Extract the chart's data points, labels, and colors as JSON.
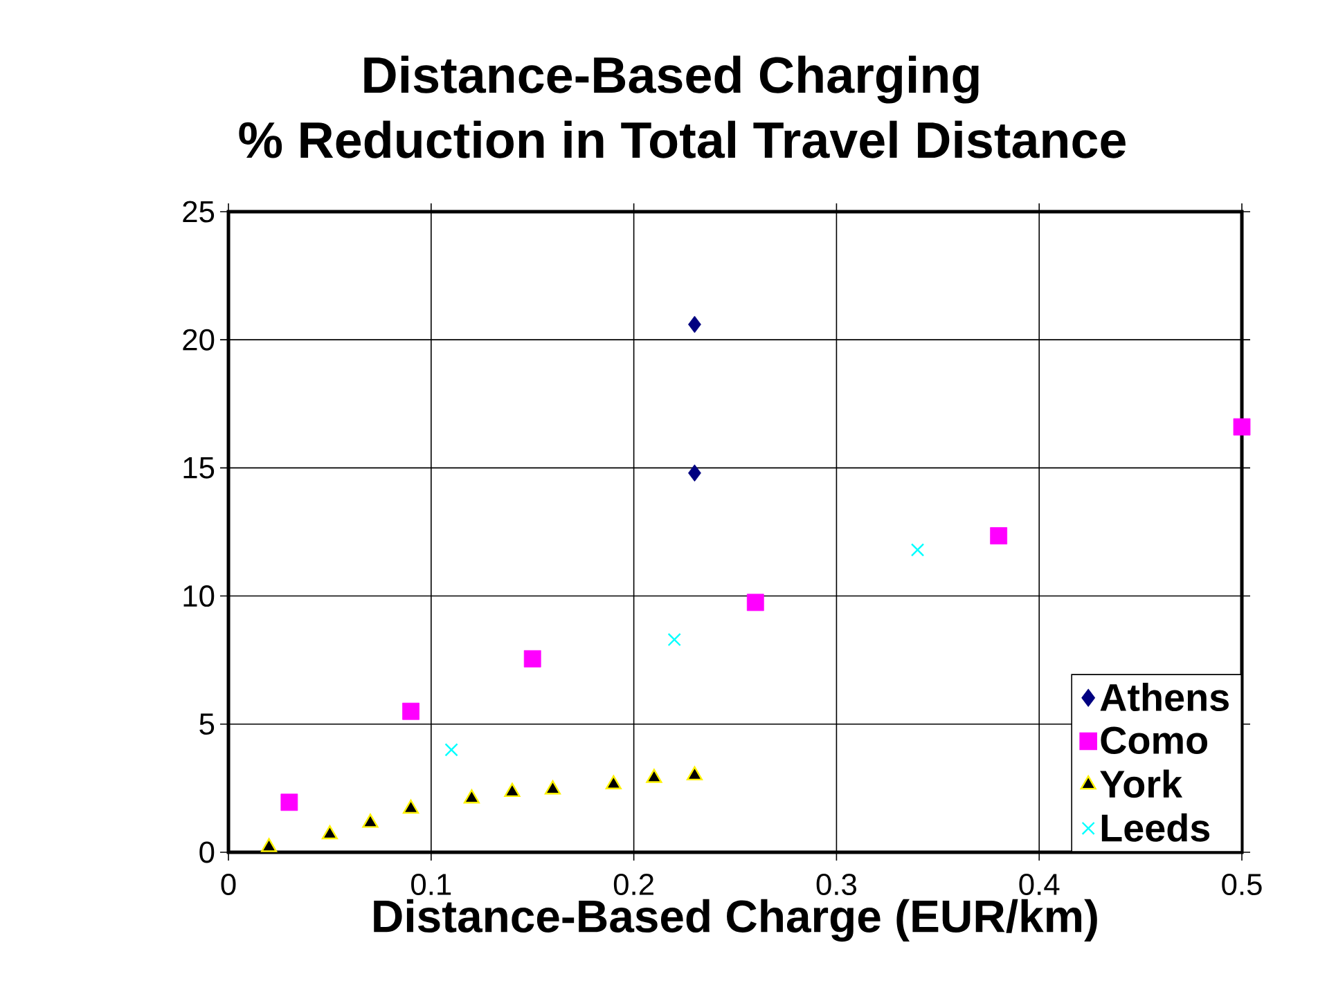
{
  "chart_data": {
    "type": "scatter",
    "title": "Distance-Based Charging",
    "subtitle": "% Reduction in Total Travel Distance",
    "xlabel": "Distance-Based Charge (EUR/km)",
    "xlim": [
      0,
      0.5
    ],
    "xticks": [
      0,
      0.1,
      0.2,
      0.3,
      0.4,
      0.5
    ],
    "ylim": [
      0,
      25
    ],
    "yticks": [
      0,
      5,
      10,
      15,
      20,
      25
    ],
    "grid": true,
    "legend": "bottom right",
    "series": [
      {
        "name": "Athens",
        "color": "#000080",
        "marker": "diamond",
        "x": [
          0.23,
          0.23
        ],
        "values": [
          20.6,
          14.8
        ]
      },
      {
        "name": "Como",
        "color": "#ff00ff",
        "marker": "square",
        "x": [
          0.03,
          0.09,
          0.15,
          0.26,
          0.38,
          0.5
        ],
        "values": [
          1.95,
          5.5,
          7.55,
          9.75,
          12.35,
          16.6
        ]
      },
      {
        "name": "York",
        "color": "#000000",
        "marker": "triangle",
        "x": [
          0.02,
          0.05,
          0.07,
          0.09,
          0.12,
          0.14,
          0.16,
          0.19,
          0.21,
          0.23
        ],
        "values": [
          0.2,
          0.7,
          1.15,
          1.7,
          2.1,
          2.35,
          2.45,
          2.65,
          2.9,
          3.0
        ]
      },
      {
        "name": "Leeds",
        "color": "#00ffff",
        "marker": "cross",
        "x": [
          0.11,
          0.22,
          0.34
        ],
        "values": [
          4.0,
          8.3,
          11.8
        ]
      }
    ]
  }
}
